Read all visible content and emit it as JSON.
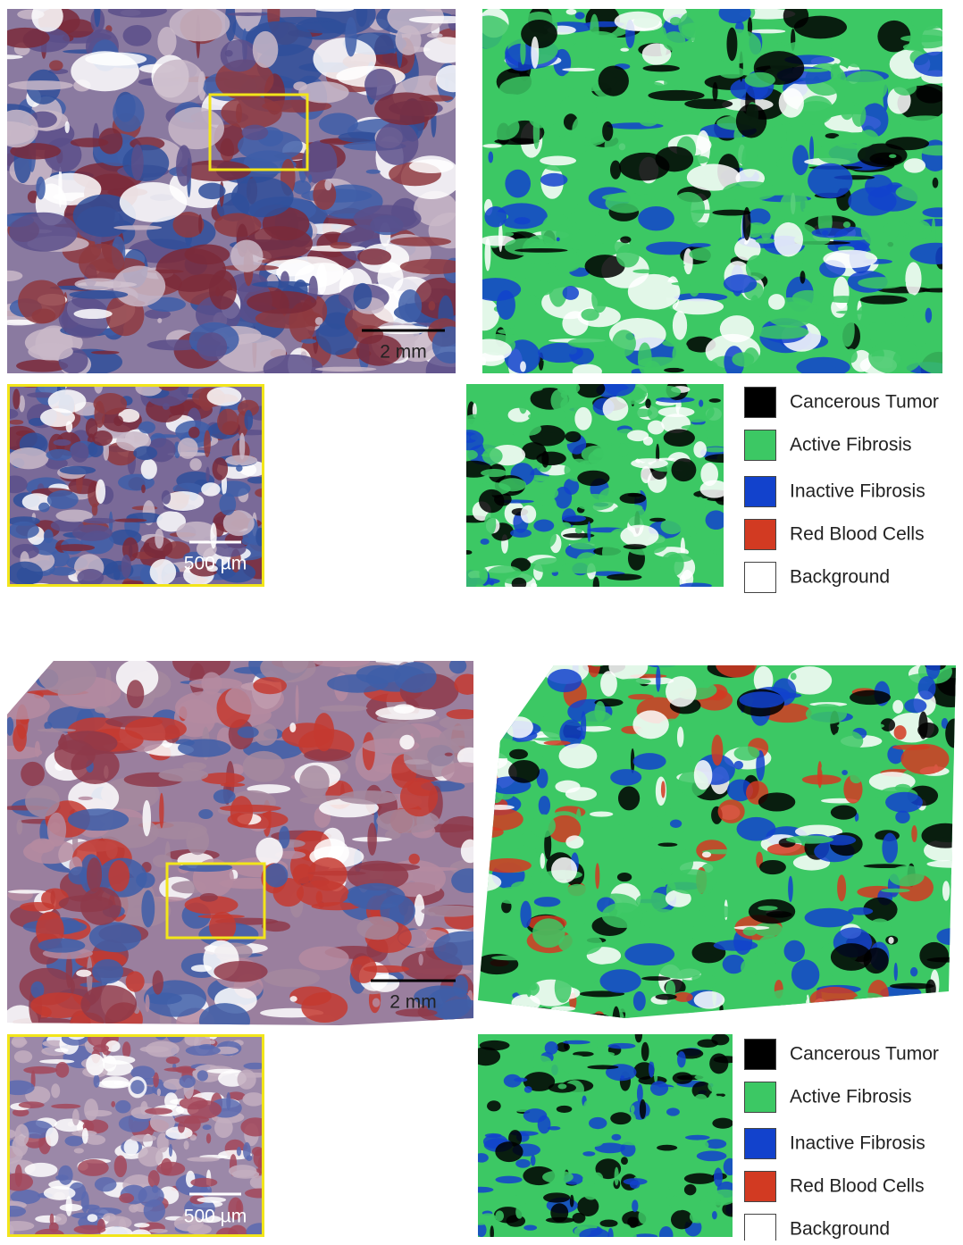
{
  "panels": [
    {
      "scale_bar_main": "2 mm",
      "scale_bar_inset": "500 µm",
      "legend": [
        {
          "label": "Cancerous Tumor",
          "color": "#000000"
        },
        {
          "label": "Active Fibrosis",
          "color": "#3cc864"
        },
        {
          "label": "Inactive Fibrosis",
          "color": "#1242cc"
        },
        {
          "label": "Red Blood Cells",
          "color": "#d23a22"
        },
        {
          "label": "Background",
          "color": "#ffffff"
        }
      ]
    },
    {
      "scale_bar_main": "2 mm",
      "scale_bar_inset": "500 µm",
      "legend": [
        {
          "label": "Cancerous Tumor",
          "color": "#000000"
        },
        {
          "label": "Active Fibrosis",
          "color": "#3cc864"
        },
        {
          "label": "Inactive Fibrosis",
          "color": "#1242cc"
        },
        {
          "label": "Red Blood Cells",
          "color": "#d23a22"
        },
        {
          "label": "Background",
          "color": "#ffffff"
        }
      ]
    }
  ]
}
